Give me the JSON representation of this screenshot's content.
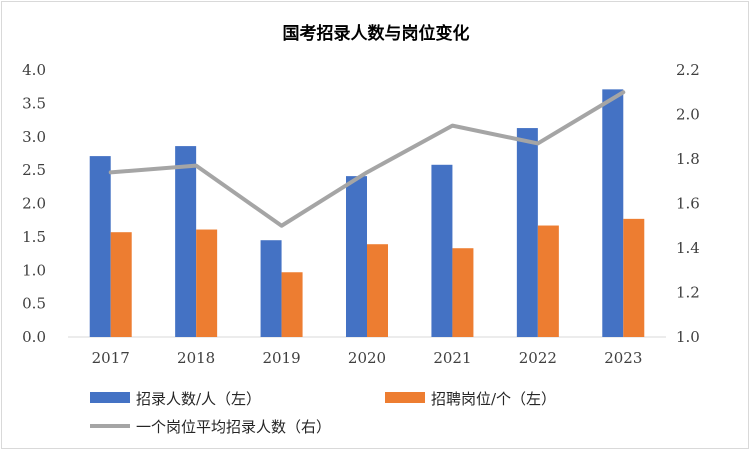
{
  "chart_data": {
    "type": "bar+line",
    "title": "国考招录人数与岗位变化",
    "categories": [
      "2017",
      "2018",
      "2019",
      "2020",
      "2021",
      "2022",
      "2023"
    ],
    "y_left": {
      "ylim": [
        0,
        4
      ],
      "ticks": [
        "0.0",
        "0.5",
        "1.0",
        "1.5",
        "2.0",
        "2.5",
        "3.0",
        "3.5",
        "4.0"
      ]
    },
    "y_right": {
      "ylim": [
        1.0,
        2.2
      ],
      "ticks": [
        "1.0",
        "1.2",
        "1.4",
        "1.6",
        "1.8",
        "2.0",
        "2.2"
      ]
    },
    "series": [
      {
        "name": "招录人数/人（左）",
        "type": "bar",
        "axis": "left",
        "color": "#4472c4",
        "values": [
          2.71,
          2.86,
          1.45,
          2.41,
          2.58,
          3.13,
          3.71
        ]
      },
      {
        "name": "招聘岗位/个（左）",
        "type": "bar",
        "axis": "left",
        "color": "#ed7d31",
        "values": [
          1.57,
          1.61,
          0.97,
          1.39,
          1.33,
          1.67,
          1.77
        ]
      },
      {
        "name": "一个岗位平均招录人数（右）",
        "type": "line",
        "axis": "right",
        "color": "#a5a5a5",
        "values": [
          1.74,
          1.77,
          1.5,
          1.74,
          1.95,
          1.87,
          2.1
        ]
      }
    ],
    "legend_position": "bottom",
    "grid": false
  }
}
